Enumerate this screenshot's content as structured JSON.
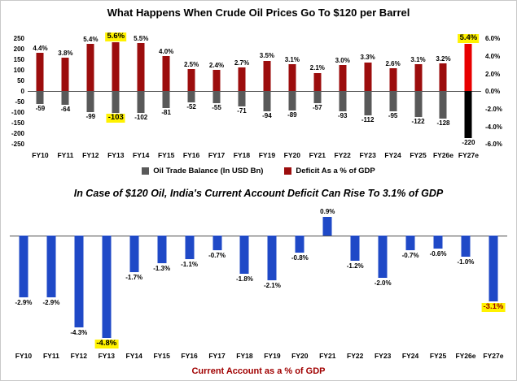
{
  "title": "What Happens When Crude Oil Prices Go To $120 per Barrel",
  "subtitle": "In Case of $120 Oil, India's Current Account Deficit Can Rise To 3.1% of GDP",
  "legend": [
    {
      "label": "Oil Trade Balance (In USD Bn)",
      "color": "#595959"
    },
    {
      "label": "Deficit As a % of GDP",
      "color": "#9C0D0D"
    }
  ],
  "colors": {
    "balance_bar": "#595959",
    "balance_bar_final": "#000000",
    "deficit_bar": "#9C0D0D",
    "deficit_bar_final": "#E80000",
    "cad_bar": "#1F49C7",
    "highlight_bg": "#FFF200",
    "axis_title": "#A00000",
    "zero_line": "#4d4d4d"
  },
  "chart_data": [
    {
      "type": "bar",
      "title": "What Happens When Crude Oil Prices Go To $120 per Barrel",
      "categories": [
        "FY10",
        "FY11",
        "FY12",
        "FY13",
        "FY14",
        "FY15",
        "FY16",
        "FY17",
        "FY18",
        "FY19",
        "FY20",
        "FY21",
        "FY22",
        "FY23",
        "FY24",
        "FY25",
        "FY26e",
        "FY27e"
      ],
      "series": [
        {
          "name": "Oil Trade Balance (In USD Bn)",
          "axis": "left",
          "values": [
            -59,
            -64,
            -99,
            -103,
            -102,
            -81,
            -52,
            -55,
            -71,
            -94,
            -89,
            -57,
            -93,
            -112,
            -95,
            -122,
            -128,
            -220
          ],
          "highlighted": [
            {
              "index": 3,
              "color": "#000000"
            }
          ]
        },
        {
          "name": "Deficit As a % of GDP",
          "axis": "right",
          "values": [
            4.4,
            3.8,
            5.4,
            5.6,
            5.5,
            4.0,
            2.5,
            2.4,
            2.7,
            3.5,
            3.1,
            2.1,
            3.0,
            3.3,
            2.6,
            3.1,
            3.2,
            5.4
          ],
          "labels": [
            "4.4%",
            "3.8%",
            "5.4%",
            "5.6%",
            "5.5%",
            "4.0%",
            "2.5%",
            "2.4%",
            "2.7%",
            "3.5%",
            "3.1%",
            "2.1%",
            "3.0%",
            "3.3%",
            "2.6%",
            "3.1%",
            "3.2%",
            "5.4%"
          ],
          "highlighted": [
            {
              "index": 3,
              "color": "#000000"
            },
            {
              "index": 17,
              "color": "#000000"
            }
          ]
        }
      ],
      "left_axis": {
        "ticks": [
          "250",
          "200",
          "150",
          "100",
          "50",
          "0",
          "-50",
          "-100",
          "-150",
          "-200",
          "-250"
        ],
        "max": 250,
        "min": -250
      },
      "right_axis": {
        "ticks": [
          "6.0%",
          "4.0%",
          "2.0%",
          "0.0%",
          "-2.0%",
          "-4.0%",
          "-6.0%"
        ],
        "max": 6,
        "min": -6
      },
      "grid": false,
      "legend_position": "bottom"
    },
    {
      "type": "bar",
      "title": "In Case of $120 Oil, India's Current Account Deficit Can Rise To 3.1% of GDP",
      "categories": [
        "FY10",
        "FY11",
        "FY12",
        "FY13",
        "FY14",
        "FY15",
        "FY16",
        "FY17",
        "FY18",
        "FY19",
        "FY20",
        "FY21",
        "FY22",
        "FY23",
        "FY24",
        "FY25",
        "FY26e",
        "FY27e"
      ],
      "values": [
        -2.9,
        -2.9,
        -4.3,
        -4.8,
        -1.7,
        -1.3,
        -1.1,
        -0.7,
        -1.8,
        -2.1,
        -0.8,
        0.9,
        -1.2,
        -2.0,
        -0.7,
        -0.6,
        -1.0,
        -3.1
      ],
      "labels": [
        "-2.9%",
        "-2.9%",
        "-4.3%",
        "-4.8%",
        "-1.7%",
        "-1.3%",
        "-1.1%",
        "-0.7%",
        "-1.8%",
        "-2.1%",
        "-0.8%",
        "0.9%",
        "-1.2%",
        "-2.0%",
        "-0.7%",
        "-0.6%",
        "-1.0%",
        "-3.1%"
      ],
      "xlabel": "Current Account as a % of GDP",
      "ylim": [
        1.3,
        -5.2
      ],
      "highlighted": [
        {
          "index": 3,
          "color": "#000000"
        },
        {
          "index": 17,
          "color": "#9B0000"
        }
      ],
      "grid": false
    }
  ]
}
